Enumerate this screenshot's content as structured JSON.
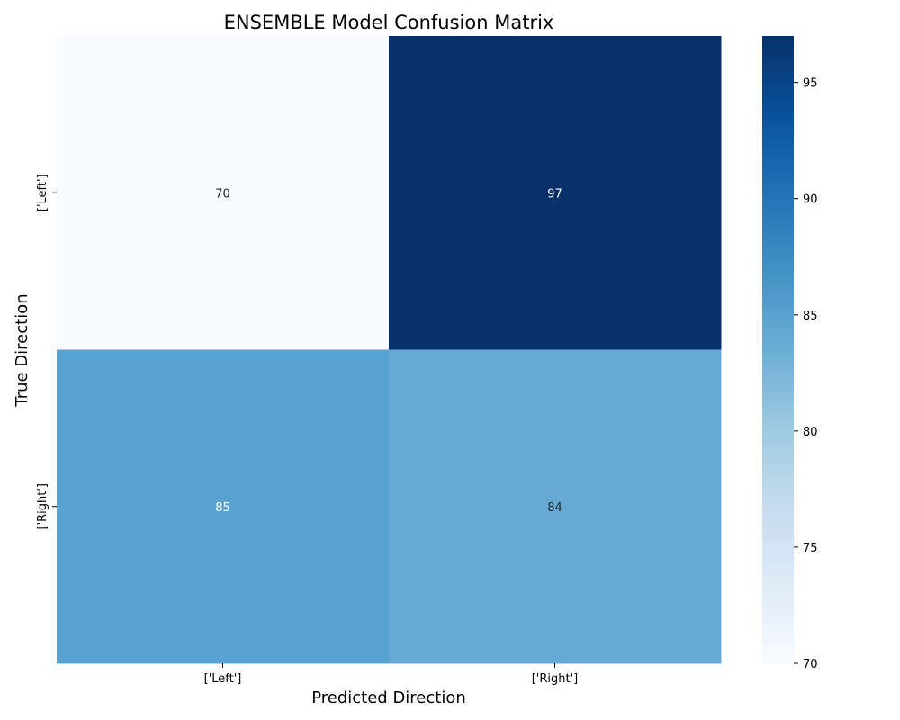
{
  "chart_data": {
    "type": "heatmap",
    "title": "ENSEMBLE Model Confusion Matrix",
    "xlabel": "Predicted Direction",
    "ylabel": "True Direction",
    "x_categories": [
      "['Left']",
      "['Right']"
    ],
    "y_categories": [
      "['Left']",
      "['Right']"
    ],
    "values": [
      [
        70,
        97
      ],
      [
        85,
        84
      ]
    ],
    "colorscale": "Blues",
    "colorbar": {
      "min": 70,
      "max": 97,
      "ticks": [
        70,
        75,
        80,
        85,
        90,
        95
      ]
    },
    "grid": false,
    "legend": "colorbar-right"
  }
}
